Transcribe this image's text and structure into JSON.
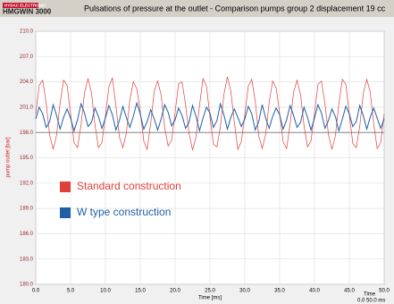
{
  "app": {
    "logo": "HYDAC ELECTRONIC",
    "name": "HMGWIN 3000"
  },
  "chart_data": {
    "type": "line",
    "title": "Pulsations of pressure at the outlet - Comparison pumps group 2 displacement 19 cc",
    "x_label": "Time [ms]",
    "y_label": "pump outlet [bar]",
    "range_labels": [
      "Time",
      "0.0   50.0 ms"
    ],
    "reference_line": 198,
    "grid": true,
    "xlim": [
      0,
      50
    ],
    "ylim": [
      180,
      210
    ],
    "xticks": [
      {
        "value": 0,
        "label": "0.0"
      },
      {
        "value": 5,
        "label": "5.0"
      },
      {
        "value": 10,
        "label": "10.0"
      },
      {
        "value": 15,
        "label": "15.0"
      },
      {
        "value": 20,
        "label": "20.0"
      },
      {
        "value": 25,
        "label": "25.0"
      },
      {
        "value": 30,
        "label": "30.0"
      },
      {
        "value": 35,
        "label": "35.0"
      },
      {
        "value": 40,
        "label": "40.0"
      },
      {
        "value": 45,
        "label": "45.0"
      },
      {
        "value": 50,
        "label": "50.0"
      }
    ],
    "yticks": [
      {
        "value": 180,
        "label": "180.0"
      },
      {
        "value": 183,
        "label": "183.0"
      },
      {
        "value": 186,
        "label": "186.0"
      },
      {
        "value": 189,
        "label": "189.0"
      },
      {
        "value": 192,
        "label": "192.0"
      },
      {
        "value": 195,
        "label": "195.0"
      },
      {
        "value": 198,
        "label": "198.0"
      },
      {
        "value": 201,
        "label": "201.0"
      },
      {
        "value": 204,
        "label": "204.0"
      },
      {
        "value": 207,
        "label": "207.0"
      },
      {
        "value": 210,
        "label": "210.0"
      }
    ],
    "x": [
      0,
      0.5,
      1,
      1.5,
      2,
      2.5,
      3,
      3.5,
      4,
      4.5,
      5,
      5.5,
      6,
      6.5,
      7,
      7.5,
      8,
      8.5,
      9,
      9.5,
      10,
      10.5,
      11,
      11.5,
      12,
      12.5,
      13,
      13.5,
      14,
      14.5,
      15,
      15.5,
      16,
      16.5,
      17,
      17.5,
      18,
      18.5,
      19,
      19.5,
      20,
      20.5,
      21,
      21.5,
      22,
      22.5,
      23,
      23.5,
      24,
      24.5,
      25,
      25.5,
      26,
      26.5,
      27,
      27.5,
      28,
      28.5,
      29,
      29.5,
      30,
      30.5,
      31,
      31.5,
      32,
      32.5,
      33,
      33.5,
      34,
      34.5,
      35,
      35.5,
      36,
      36.5,
      37,
      37.5,
      38,
      38.5,
      39,
      39.5,
      40,
      40.5,
      41,
      41.5,
      42,
      42.5,
      43,
      43.5,
      44,
      44.5,
      45,
      45.5,
      46,
      46.5,
      47,
      47.5,
      48,
      48.5,
      49,
      49.5,
      50
    ],
    "series": [
      {
        "name": "Standard construction",
        "color": "#e0403a",
        "values": [
          200.2,
          203.6,
          204.2,
          201.5,
          197.7,
          196.0,
          197.7,
          201.5,
          204.2,
          203.6,
          200.2,
          196.8,
          196.2,
          198.9,
          202.7,
          204.4,
          202.7,
          198.9,
          196.2,
          196.8,
          200.0,
          203.4,
          204.5,
          201.2,
          197.5,
          196.2,
          197.9,
          201.8,
          204.0,
          203.2,
          200.5,
          197.0,
          196.0,
          199.1,
          202.9,
          204.1,
          202.4,
          198.6,
          196.4,
          197.1,
          200.4,
          203.8,
          204.0,
          201.3,
          197.9,
          195.9,
          197.5,
          201.2,
          204.4,
          203.5,
          199.9,
          196.6,
          196.3,
          198.7,
          202.5,
          204.6,
          202.9,
          199.2,
          196.0,
          196.9,
          200.1,
          203.5,
          204.3,
          201.7,
          197.6,
          196.1,
          197.8,
          201.6,
          204.1,
          203.3,
          200.3,
          196.9,
          196.1,
          199.0,
          202.8,
          204.2,
          202.5,
          198.8,
          196.3,
          197.0,
          200.3,
          203.7,
          204.1,
          201.4,
          197.8,
          196.0,
          197.6,
          201.4,
          204.3,
          203.7,
          200.1,
          196.7,
          196.2,
          198.8,
          202.6,
          204.3,
          202.8,
          199.0,
          196.1,
          196.8,
          200.2
        ]
      },
      {
        "name": "W type construction",
        "color": "#1f5fa6",
        "values": [
          199.6,
          201.0,
          200.2,
          198.6,
          199.3,
          201.3,
          200.0,
          198.4,
          199.8,
          200.8,
          199.7,
          198.2,
          199.5,
          201.4,
          200.3,
          198.7,
          199.2,
          200.9,
          199.9,
          198.5,
          199.7,
          201.2,
          200.1,
          198.3,
          199.4,
          201.1,
          199.8,
          198.6,
          199.9,
          201.5,
          200.2,
          198.4,
          199.3,
          200.7,
          199.6,
          198.3,
          199.6,
          201.3,
          200.4,
          198.8,
          199.5,
          200.9,
          200.0,
          198.5,
          199.2,
          201.2,
          199.9,
          198.2,
          199.7,
          201.0,
          200.3,
          198.6,
          199.4,
          201.4,
          200.1,
          198.4,
          199.8,
          200.8,
          199.8,
          198.7,
          199.6,
          201.1,
          200.2,
          198.3,
          199.3,
          201.3,
          199.7,
          198.5,
          199.9,
          200.9,
          200.1,
          198.4,
          199.5,
          201.2,
          200.0,
          198.6,
          199.2,
          201.0,
          199.8,
          198.3,
          199.7,
          201.3,
          200.3,
          198.5,
          199.4,
          200.8,
          199.9,
          198.2,
          199.6,
          201.1,
          200.2,
          198.7,
          199.3,
          201.2,
          200.0,
          198.4,
          199.8,
          200.9,
          199.7,
          198.5,
          199.6
        ]
      }
    ]
  }
}
